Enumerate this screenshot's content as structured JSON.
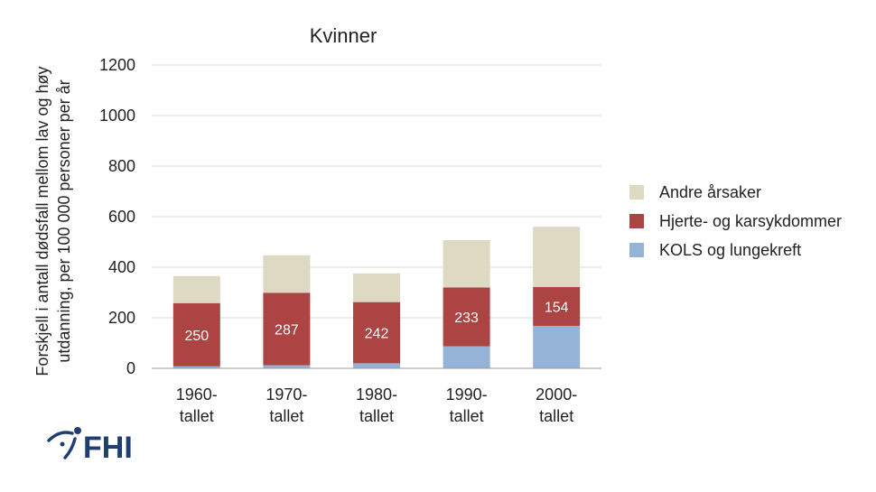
{
  "chart_data": {
    "type": "bar",
    "stacked": true,
    "title": "Kvinner",
    "ylabel": [
      "Forskjell i antall dødsfall mellom lav og høy",
      "utdanning, per 100 000 personer per år"
    ],
    "categories": [
      [
        "1960-",
        "tallet"
      ],
      [
        "1970-",
        "tallet"
      ],
      [
        "1980-",
        "tallet"
      ],
      [
        "1990-",
        "tallet"
      ],
      [
        "2000-",
        "tallet"
      ]
    ],
    "yticks": [
      "0",
      "200",
      "400",
      "600",
      "800",
      "1000",
      "1200"
    ],
    "ylim": [
      0,
      1200
    ],
    "grid": true,
    "legend_position": "right",
    "series": [
      {
        "name": "KOLS og lungekreft",
        "color": "#95b3d7",
        "values": [
          8,
          12,
          20,
          87,
          168
        ],
        "labels": [
          "",
          "",
          "",
          "",
          ""
        ]
      },
      {
        "name": "Hjerte- og karsykdommer",
        "color": "#ad4444",
        "values": [
          250,
          287,
          242,
          233,
          154
        ],
        "labels": [
          "250",
          "287",
          "242",
          "233",
          "154"
        ]
      },
      {
        "name": "Andre årsaker",
        "color": "#ddd9c3",
        "values": [
          107,
          148,
          114,
          187,
          238
        ],
        "labels": [
          "",
          "",
          "",
          "",
          ""
        ]
      }
    ],
    "legend_order": [
      2,
      1,
      0
    ]
  },
  "logo": {
    "text": "FHI",
    "icon": "fhi-logo-icon"
  }
}
